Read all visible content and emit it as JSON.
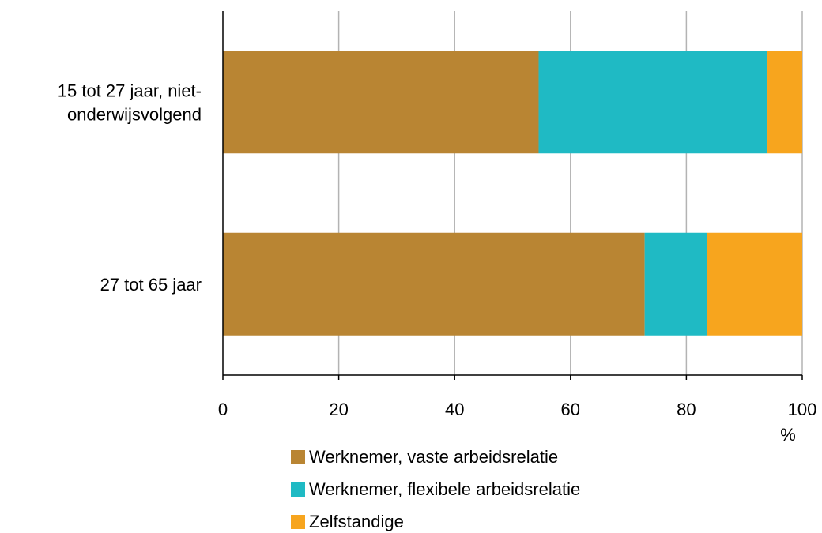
{
  "chart_data": {
    "type": "bar",
    "orientation": "horizontal",
    "stacked": true,
    "categories": [
      [
        "15 tot 27 jaar, niet-",
        "onderwijsvolgend"
      ],
      [
        "27 tot 65 jaar"
      ]
    ],
    "series": [
      {
        "name": "Werknemer, vaste arbeidsrelatie",
        "values": [
          54.5,
          72.8
        ],
        "color": "#b98533"
      },
      {
        "name": "Werknemer, flexibele arbeidsrelatie",
        "values": [
          39.5,
          10.7
        ],
        "color": "#1fbac4"
      },
      {
        "name": "Zelfstandige",
        "values": [
          6.0,
          16.5
        ],
        "color": "#f7a51e"
      }
    ],
    "xlim": [
      0,
      100
    ],
    "xticks": [
      0,
      20,
      40,
      60,
      80,
      100
    ],
    "xlabel": "%",
    "grid": "vertical",
    "legend_position": "bottom"
  }
}
